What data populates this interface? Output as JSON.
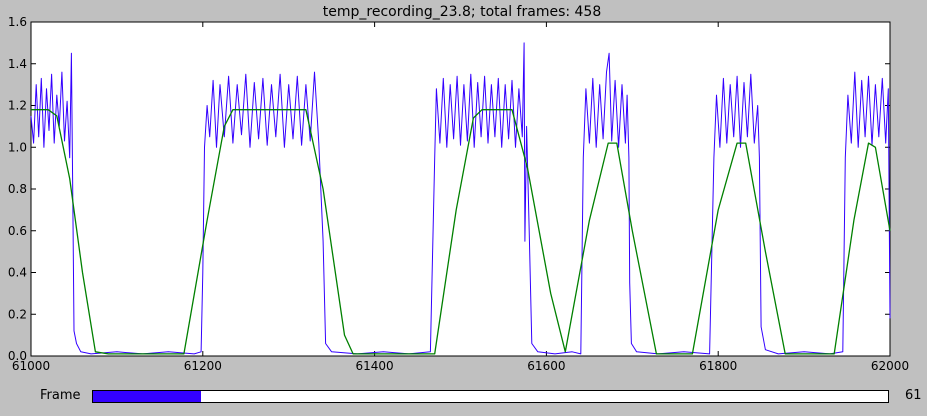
{
  "chart_data": {
    "type": "line",
    "title": "temp_recording_23.8; total frames: 458",
    "xlabel": "",
    "ylabel": "",
    "xlim": [
      61000,
      62000
    ],
    "ylim": [
      0.0,
      1.6
    ],
    "x_ticks": [
      "61000",
      "61200",
      "61400",
      "61600",
      "61800",
      "62000"
    ],
    "y_ticks": [
      "0.0",
      "0.2",
      "0.4",
      "0.6",
      "0.8",
      "1.0",
      "1.2",
      "1.4",
      "1.6"
    ],
    "grid": false,
    "series": [
      {
        "color": "#3300ff",
        "style": "raw signal, oscillating ~1.0–1.37 during high phases, ~0.01 during low phases",
        "values": [
          [
            61000,
            1.15
          ],
          [
            61003,
            1.02
          ],
          [
            61006,
            1.3
          ],
          [
            61009,
            1.05
          ],
          [
            61012,
            1.33
          ],
          [
            61015,
            1.0
          ],
          [
            61018,
            1.28
          ],
          [
            61021,
            1.08
          ],
          [
            61024,
            1.35
          ],
          [
            61027,
            1.02
          ],
          [
            61030,
            1.25
          ],
          [
            61033,
            1.1
          ],
          [
            61036,
            1.36
          ],
          [
            61039,
            1.03
          ],
          [
            61042,
            1.22
          ],
          [
            61045,
            0.95
          ],
          [
            61047,
            1.45
          ],
          [
            61049,
            0.6
          ],
          [
            61050,
            0.12
          ],
          [
            61053,
            0.06
          ],
          [
            61058,
            0.02
          ],
          [
            61070,
            0.01
          ],
          [
            61100,
            0.02
          ],
          [
            61130,
            0.01
          ],
          [
            61160,
            0.02
          ],
          [
            61190,
            0.01
          ],
          [
            61198,
            0.02
          ],
          [
            61200,
            0.4
          ],
          [
            61202,
            1.0
          ],
          [
            61205,
            1.2
          ],
          [
            61208,
            1.05
          ],
          [
            61212,
            1.32
          ],
          [
            61216,
            1.0
          ],
          [
            61220,
            1.3
          ],
          [
            61225,
            1.05
          ],
          [
            61230,
            1.34
          ],
          [
            61235,
            1.02
          ],
          [
            61240,
            1.3
          ],
          [
            61245,
            1.06
          ],
          [
            61250,
            1.35
          ],
          [
            61255,
            1.0
          ],
          [
            61260,
            1.31
          ],
          [
            61265,
            1.04
          ],
          [
            61270,
            1.33
          ],
          [
            61275,
            1.01
          ],
          [
            61280,
            1.3
          ],
          [
            61285,
            1.05
          ],
          [
            61290,
            1.35
          ],
          [
            61295,
            1.0
          ],
          [
            61300,
            1.3
          ],
          [
            61305,
            1.04
          ],
          [
            61310,
            1.34
          ],
          [
            61315,
            1.01
          ],
          [
            61320,
            1.3
          ],
          [
            61325,
            1.03
          ],
          [
            61330,
            1.36
          ],
          [
            61335,
            1.02
          ],
          [
            61340,
            0.55
          ],
          [
            61343,
            0.06
          ],
          [
            61350,
            0.02
          ],
          [
            61380,
            0.01
          ],
          [
            61410,
            0.02
          ],
          [
            61440,
            0.01
          ],
          [
            61465,
            0.02
          ],
          [
            61470,
            0.95
          ],
          [
            61472,
            1.28
          ],
          [
            61476,
            1.02
          ],
          [
            61480,
            1.33
          ],
          [
            61484,
            1.0
          ],
          [
            61488,
            1.3
          ],
          [
            61492,
            1.04
          ],
          [
            61496,
            1.34
          ],
          [
            61500,
            1.01
          ],
          [
            61504,
            1.3
          ],
          [
            61508,
            1.03
          ],
          [
            61512,
            1.35
          ],
          [
            61516,
            1.0
          ],
          [
            61520,
            1.31
          ],
          [
            61524,
            1.05
          ],
          [
            61528,
            1.34
          ],
          [
            61532,
            1.02
          ],
          [
            61536,
            1.3
          ],
          [
            61540,
            1.05
          ],
          [
            61544,
            1.33
          ],
          [
            61548,
            1.0
          ],
          [
            61552,
            1.3
          ],
          [
            61556,
            1.04
          ],
          [
            61560,
            1.32
          ],
          [
            61564,
            1.0
          ],
          [
            61568,
            1.28
          ],
          [
            61572,
            1.05
          ],
          [
            61574,
            1.5
          ],
          [
            61575,
            0.55
          ],
          [
            61577,
            1.1
          ],
          [
            61580,
            0.6
          ],
          [
            61583,
            0.06
          ],
          [
            61590,
            0.02
          ],
          [
            61610,
            0.01
          ],
          [
            61630,
            0.02
          ],
          [
            61640,
            0.01
          ],
          [
            61643,
            0.95
          ],
          [
            61646,
            1.28
          ],
          [
            61650,
            1.02
          ],
          [
            61654,
            1.33
          ],
          [
            61658,
            1.0
          ],
          [
            61662,
            1.3
          ],
          [
            61666,
            1.04
          ],
          [
            61670,
            1.36
          ],
          [
            61673,
            1.45
          ],
          [
            61676,
            1.03
          ],
          [
            61680,
            1.32
          ],
          [
            61684,
            1.0
          ],
          [
            61688,
            1.3
          ],
          [
            61692,
            1.02
          ],
          [
            61694,
            1.25
          ],
          [
            61696,
            0.95
          ],
          [
            61697,
            0.35
          ],
          [
            61699,
            0.06
          ],
          [
            61705,
            0.02
          ],
          [
            61730,
            0.01
          ],
          [
            61760,
            0.02
          ],
          [
            61790,
            0.01
          ],
          [
            61795,
            0.95
          ],
          [
            61798,
            1.25
          ],
          [
            61802,
            1.0
          ],
          [
            61806,
            1.33
          ],
          [
            61810,
            1.02
          ],
          [
            61814,
            1.3
          ],
          [
            61818,
            1.05
          ],
          [
            61822,
            1.34
          ],
          [
            61826,
            1.0
          ],
          [
            61830,
            1.31
          ],
          [
            61834,
            1.05
          ],
          [
            61838,
            1.35
          ],
          [
            61842,
            1.02
          ],
          [
            61846,
            1.2
          ],
          [
            61848,
            0.95
          ],
          [
            61850,
            0.14
          ],
          [
            61855,
            0.03
          ],
          [
            61870,
            0.01
          ],
          [
            61900,
            0.02
          ],
          [
            61930,
            0.01
          ],
          [
            61945,
            0.02
          ],
          [
            61948,
            0.95
          ],
          [
            61951,
            1.25
          ],
          [
            61955,
            1.02
          ],
          [
            61959,
            1.36
          ],
          [
            61963,
            1.0
          ],
          [
            61967,
            1.32
          ],
          [
            61971,
            1.05
          ],
          [
            61975,
            1.34
          ],
          [
            61979,
            1.01
          ],
          [
            61983,
            1.3
          ],
          [
            61987,
            1.05
          ],
          [
            61991,
            1.33
          ],
          [
            61995,
            1.02
          ],
          [
            61998,
            1.28
          ],
          [
            62000,
            0.18
          ]
        ]
      },
      {
        "color": "#008000",
        "style": "smoothed envelope",
        "values": [
          [
            61000,
            1.18
          ],
          [
            61020,
            1.18
          ],
          [
            61030,
            1.15
          ],
          [
            61045,
            0.85
          ],
          [
            61060,
            0.4
          ],
          [
            61075,
            0.02
          ],
          [
            61090,
            0.01
          ],
          [
            61150,
            0.01
          ],
          [
            61178,
            0.01
          ],
          [
            61205,
            0.65
          ],
          [
            61225,
            1.1
          ],
          [
            61235,
            1.18
          ],
          [
            61320,
            1.18
          ],
          [
            61340,
            0.8
          ],
          [
            61365,
            0.1
          ],
          [
            61375,
            0.01
          ],
          [
            61470,
            0.01
          ],
          [
            61495,
            0.7
          ],
          [
            61515,
            1.14
          ],
          [
            61525,
            1.18
          ],
          [
            61560,
            1.18
          ],
          [
            61578,
            0.9
          ],
          [
            61605,
            0.3
          ],
          [
            61622,
            0.02
          ],
          [
            61650,
            0.65
          ],
          [
            61672,
            1.02
          ],
          [
            61682,
            1.02
          ],
          [
            61700,
            0.6
          ],
          [
            61728,
            0.01
          ],
          [
            61770,
            0.01
          ],
          [
            61800,
            0.7
          ],
          [
            61822,
            1.02
          ],
          [
            61832,
            1.02
          ],
          [
            61855,
            0.5
          ],
          [
            61878,
            0.01
          ],
          [
            61935,
            0.01
          ],
          [
            61958,
            0.65
          ],
          [
            61975,
            1.02
          ],
          [
            61983,
            1.0
          ],
          [
            62000,
            0.6
          ]
        ]
      }
    ]
  },
  "slider": {
    "label": "Frame",
    "value": "61",
    "fraction": 0.136
  }
}
